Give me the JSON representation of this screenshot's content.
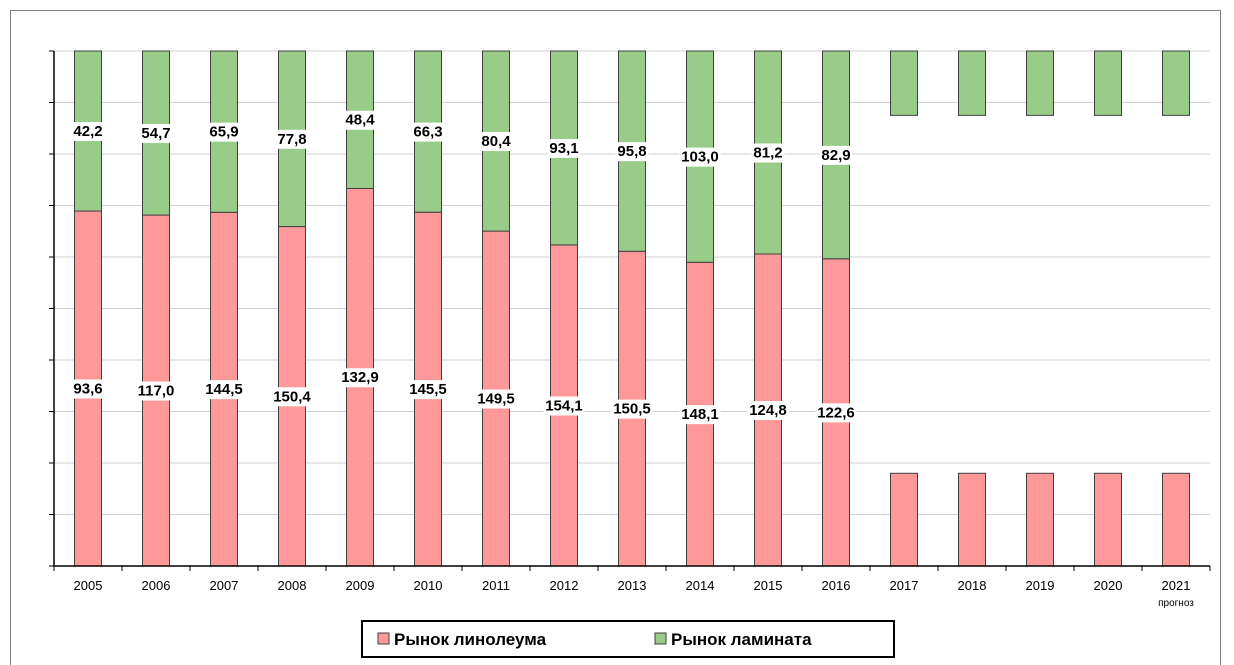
{
  "chart_data": {
    "type": "bar",
    "stacked": "percent",
    "categories": [
      "2005",
      "2006",
      "2007",
      "2008",
      "2009",
      "2010",
      "2011",
      "2012",
      "2013",
      "2014",
      "2015",
      "2016",
      "2017",
      "2018",
      "2019",
      "2020",
      "2021"
    ],
    "category_note": {
      "index": 16,
      "text": "прогноз"
    },
    "series": [
      {
        "name": "Рынок линолеума",
        "color": "#ff9999",
        "values": [
          93.6,
          117.0,
          144.5,
          150.4,
          132.9,
          145.5,
          149.5,
          154.1,
          150.5,
          148.1,
          124.8,
          122.6,
          null,
          null,
          null,
          null,
          null
        ],
        "labels": [
          "93,6",
          "117,0",
          "144,5",
          "150,4",
          "132,9",
          "145,5",
          "149,5",
          "154,1",
          "150,5",
          "148,1",
          "124,8",
          "122,6",
          "",
          "",
          "",
          "",
          ""
        ],
        "forecast_fraction": 0.18
      },
      {
        "name": "Рынок ламината",
        "color": "#99cc88",
        "values": [
          42.2,
          54.7,
          65.9,
          77.8,
          48.4,
          66.3,
          80.4,
          93.1,
          95.8,
          103.0,
          81.2,
          82.9,
          null,
          null,
          null,
          null,
          null
        ],
        "labels": [
          "42,2",
          "54,7",
          "65,9",
          "77,8",
          "48,4",
          "66,3",
          "80,4",
          "93,1",
          "95,8",
          "103,0",
          "81,2",
          "82,9",
          "",
          "",
          "",
          "",
          ""
        ],
        "forecast_fraction": 0.125
      }
    ],
    "ylim": [
      0,
      1
    ],
    "y_ticks": 10,
    "ytick_labels_shown": false,
    "grid": true,
    "legend": "bottom-center"
  }
}
